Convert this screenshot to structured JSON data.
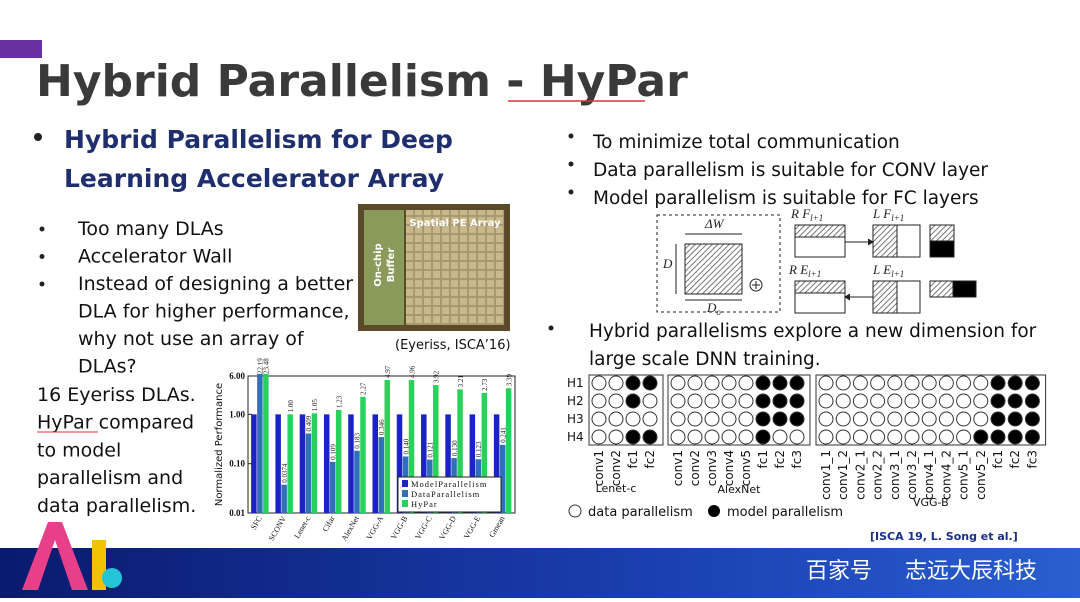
{
  "title": "Hybrid Parallelism - HyPar",
  "left": {
    "heading": [
      "Hybrid Parallelism for Deep",
      "Learning Accelerator Array"
    ],
    "bullets": [
      [
        "Too many DLAs"
      ],
      [
        "Accelerator Wall"
      ],
      [
        "Instead of designing a better",
        "DLA for higher performance,",
        "why not use an array of",
        "DLAs?"
      ]
    ],
    "summary": [
      "16 Eyeriss DLAs.",
      "HyPar compared",
      "to model",
      "parallelism and",
      "data parallelism."
    ]
  },
  "photo": {
    "buffer_label": [
      "On-chip",
      "Buffer"
    ],
    "array_label": "Spatial PE Array",
    "caption": "(Eyeriss, ISCA’16)"
  },
  "right": {
    "bullets": [
      "To minimize total communication",
      "Data parallelism is suitable for CONV layer",
      "Model parallelism is suitable for FC layers"
    ],
    "diagram": {
      "w": "ΔW",
      "d": "D",
      "do": "D",
      "do_sub": "o",
      "parts": [
        {
          "label": "R F",
          "sub": "l+1"
        },
        {
          "label": "L F",
          "sub": "l+1"
        },
        {
          "label": "R E",
          "sub": "l+1"
        },
        {
          "label": "L E",
          "sub": "l+1"
        }
      ]
    },
    "bullet2": [
      "Hybrid parallelisms explore a new dimension for",
      "large scale DNN training."
    ],
    "grid": {
      "rows": [
        "H1",
        "H2",
        "H3",
        "H4"
      ],
      "nets": [
        {
          "name": "Lenet-c",
          "layers": [
            "conv1",
            "conv2",
            "fc1",
            "fc2"
          ]
        },
        {
          "name": "AlexNet",
          "layers": [
            "conv1",
            "conv2",
            "conv3",
            "conv4",
            "conv5",
            "fc1",
            "fc2",
            "fc3"
          ]
        },
        {
          "name": "VGG-B",
          "layers": [
            "conv1_1",
            "conv1_2",
            "conv2_1",
            "conv2_2",
            "conv3_1",
            "conv3_2",
            "conv4_1",
            "conv4_2",
            "conv5_1",
            "conv5_2",
            "fc1",
            "fc2",
            "fc3"
          ]
        }
      ],
      "legend": [
        "data parallelism",
        "model parallelism"
      ]
    },
    "citation": "[ISCA 19, L. Song et al.]"
  },
  "chart": {
    "type": "bar",
    "ylabel": "Normalized Performance",
    "log": true,
    "categories": [
      "SFC",
      "SCONV",
      "Lenet-c",
      "Cifar",
      "AlexNet",
      "VGG-A",
      "VGG-B",
      "VGG-C",
      "VGG-D",
      "VGG-E",
      "Gmean"
    ],
    "ylim": [
      0.01,
      6
    ],
    "yticks": [
      {
        "value": 0.01,
        "label": "0.01"
      },
      {
        "value": 0.1,
        "label": "0.10"
      },
      {
        "value": 1,
        "label": "1.00"
      },
      {
        "value": 6,
        "label": "6.00"
      }
    ],
    "series": [
      {
        "name": "ModelParallelism",
        "color": "#1a22c8",
        "values": [
          1,
          1,
          1,
          1,
          1,
          1,
          1,
          1,
          1,
          1,
          1
        ]
      },
      {
        "name": "DataParallelism",
        "color": "#2f70b8",
        "values": [
          22.19,
          0.0374,
          0.409,
          0.109,
          0.183,
          0.346,
          0.14,
          0.121,
          0.13,
          0.123,
          0.241
        ],
        "value_labels": [
          "22.19",
          "0.0374",
          "0.409",
          "0.109",
          "0.183",
          "0.346",
          "0.140",
          "0.121",
          "0.130",
          "0.123",
          "0.241"
        ]
      },
      {
        "name": "HyPar",
        "color": "#27d15a",
        "values": [
          23.48,
          1,
          1.05,
          1.23,
          2.27,
          4.97,
          4.96,
          3.92,
          3.21,
          2.73,
          3.39
        ],
        "value_labels": [
          "23.48",
          "1.00",
          "1.05",
          "1.23",
          "2.27",
          "4.97",
          "4.96",
          "3.92",
          "3.21",
          "2.73",
          "3.39"
        ]
      }
    ]
  },
  "footer": {
    "watermark": [
      "百家号",
      "志远大辰科技"
    ]
  }
}
